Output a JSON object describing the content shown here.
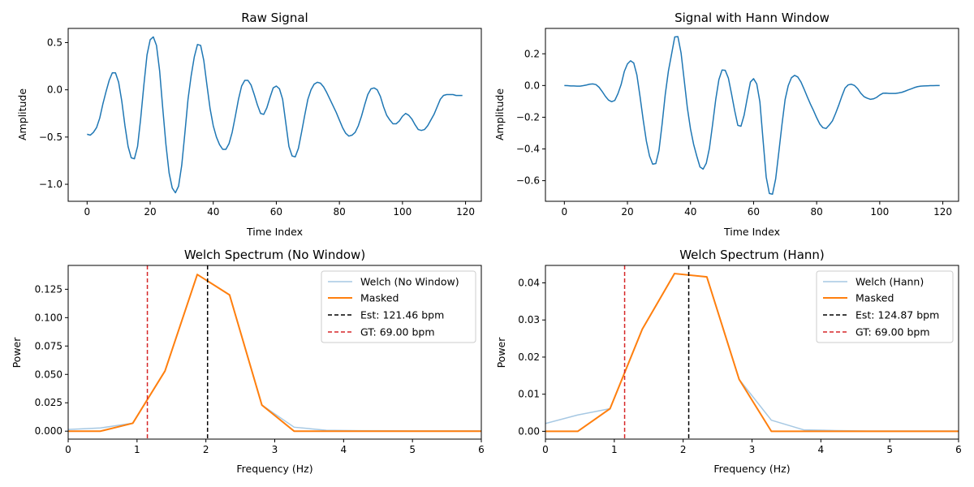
{
  "chart_data": [
    {
      "type": "line",
      "title": "Raw Signal",
      "xlabel": "Time Index",
      "ylabel": "Amplitude",
      "xlim": [
        -6,
        125
      ],
      "ylim": [
        -1.18,
        0.65
      ],
      "xticks": [
        0,
        20,
        40,
        60,
        80,
        100,
        120
      ],
      "yticks": [
        -1.0,
        -0.5,
        0.0,
        0.5
      ],
      "ytick_labels": [
        "−1.0",
        "−0.5",
        "0.0",
        "0.5"
      ],
      "grid": false,
      "series": [
        {
          "color": "#1f77b4",
          "x": [
            0,
            1,
            2,
            3,
            4,
            5,
            6,
            7,
            8,
            9,
            10,
            11,
            12,
            13,
            14,
            15,
            16,
            17,
            18,
            19,
            20,
            21,
            22,
            23,
            24,
            25,
            26,
            27,
            28,
            29,
            30,
            31,
            32,
            33,
            34,
            35,
            36,
            37,
            38,
            39,
            40,
            41,
            42,
            43,
            44,
            45,
            46,
            47,
            48,
            49,
            50,
            51,
            52,
            53,
            54,
            55,
            56,
            57,
            58,
            59,
            60,
            61,
            62,
            63,
            64,
            65,
            66,
            67,
            68,
            69,
            70,
            71,
            72,
            73,
            74,
            75,
            76,
            77,
            78,
            79,
            80,
            81,
            82,
            83,
            84,
            85,
            86,
            87,
            88,
            89,
            90,
            91,
            92,
            93,
            94,
            95,
            96,
            97,
            98,
            99,
            100,
            101,
            102,
            103,
            104,
            105,
            106,
            107,
            108,
            109,
            110,
            111,
            112,
            113,
            114,
            115,
            116,
            117,
            118,
            119
          ],
          "y": [
            -0.47,
            -0.48,
            -0.45,
            -0.4,
            -0.3,
            -0.15,
            -0.02,
            0.1,
            0.18,
            0.18,
            0.08,
            -0.12,
            -0.38,
            -0.6,
            -0.72,
            -0.73,
            -0.6,
            -0.3,
            0.05,
            0.37,
            0.53,
            0.56,
            0.47,
            0.2,
            -0.2,
            -0.58,
            -0.88,
            -1.04,
            -1.09,
            -1.02,
            -0.8,
            -0.46,
            -0.1,
            0.15,
            0.35,
            0.48,
            0.47,
            0.31,
            0.05,
            -0.2,
            -0.38,
            -0.5,
            -0.58,
            -0.63,
            -0.63,
            -0.57,
            -0.45,
            -0.28,
            -0.1,
            0.04,
            0.1,
            0.1,
            0.05,
            -0.05,
            -0.16,
            -0.25,
            -0.26,
            -0.19,
            -0.08,
            0.02,
            0.04,
            0.01,
            -0.1,
            -0.35,
            -0.6,
            -0.7,
            -0.71,
            -0.62,
            -0.45,
            -0.27,
            -0.1,
            0.0,
            0.06,
            0.08,
            0.07,
            0.03,
            -0.03,
            -0.1,
            -0.17,
            -0.24,
            -0.32,
            -0.4,
            -0.46,
            -0.49,
            -0.48,
            -0.45,
            -0.38,
            -0.28,
            -0.16,
            -0.05,
            0.01,
            0.02,
            0.0,
            -0.07,
            -0.18,
            -0.27,
            -0.32,
            -0.36,
            -0.36,
            -0.33,
            -0.28,
            -0.25,
            -0.27,
            -0.31,
            -0.37,
            -0.42,
            -0.43,
            -0.42,
            -0.38,
            -0.32,
            -0.26,
            -0.18,
            -0.1,
            -0.06,
            -0.05,
            -0.05,
            -0.05,
            -0.06,
            -0.06,
            -0.06
          ]
        }
      ]
    },
    {
      "type": "line",
      "title": "Signal with Hann Window",
      "xlabel": "Time Index",
      "ylabel": "Amplitude",
      "xlim": [
        -6,
        125
      ],
      "ylim": [
        -0.73,
        0.36
      ],
      "xticks": [
        0,
        20,
        40,
        60,
        80,
        100,
        120
      ],
      "yticks": [
        -0.6,
        -0.4,
        -0.2,
        0.0,
        0.2
      ],
      "ytick_labels": [
        "−0.6",
        "−0.4",
        "−0.2",
        "0.0",
        "0.2"
      ],
      "grid": false,
      "series": [
        {
          "color": "#1f77b4",
          "x": [
            0,
            1,
            2,
            3,
            4,
            5,
            6,
            7,
            8,
            9,
            10,
            11,
            12,
            13,
            14,
            15,
            16,
            17,
            18,
            19,
            20,
            21,
            22,
            23,
            24,
            25,
            26,
            27,
            28,
            29,
            30,
            31,
            32,
            33,
            34,
            35,
            36,
            37,
            38,
            39,
            40,
            41,
            42,
            43,
            44,
            45,
            46,
            47,
            48,
            49,
            50,
            51,
            52,
            53,
            54,
            55,
            56,
            57,
            58,
            59,
            60,
            61,
            62,
            63,
            64,
            65,
            66,
            67,
            68,
            69,
            70,
            71,
            72,
            73,
            74,
            75,
            76,
            77,
            78,
            79,
            80,
            81,
            82,
            83,
            84,
            85,
            86,
            87,
            88,
            89,
            90,
            91,
            92,
            93,
            94,
            95,
            96,
            97,
            98,
            99,
            100,
            101,
            102,
            103,
            104,
            105,
            106,
            107,
            108,
            109,
            110,
            111,
            112,
            113,
            114,
            115,
            116,
            117,
            118,
            119
          ],
          "y": [
            0.0,
            -0.001,
            -0.003,
            -0.003,
            -0.004,
            -0.004,
            -0.001,
            0.003,
            0.008,
            0.01,
            0.006,
            -0.011,
            -0.038,
            -0.068,
            -0.092,
            -0.102,
            -0.094,
            -0.051,
            0.006,
            0.088,
            0.136,
            0.156,
            0.142,
            0.066,
            -0.07,
            -0.217,
            -0.35,
            -0.444,
            -0.496,
            -0.492,
            -0.409,
            -0.242,
            -0.055,
            0.092,
            0.198,
            0.306,
            0.308,
            0.206,
            0.034,
            -0.141,
            -0.274,
            -0.372,
            -0.446,
            -0.513,
            -0.527,
            -0.49,
            -0.395,
            -0.246,
            -0.088,
            0.037,
            0.098,
            0.096,
            0.047,
            -0.052,
            -0.158,
            -0.251,
            -0.257,
            -0.187,
            -0.079,
            0.022,
            0.043,
            0.01,
            -0.103,
            -0.343,
            -0.577,
            -0.681,
            -0.685,
            -0.589,
            -0.42,
            -0.246,
            -0.088,
            0.0,
            0.049,
            0.064,
            0.054,
            0.023,
            -0.022,
            -0.07,
            -0.116,
            -0.158,
            -0.203,
            -0.243,
            -0.266,
            -0.271,
            -0.249,
            -0.223,
            -0.176,
            -0.124,
            -0.067,
            -0.016,
            0.004,
            0.008,
            0.0,
            -0.02,
            -0.049,
            -0.07,
            -0.08,
            -0.087,
            -0.084,
            -0.075,
            -0.06,
            -0.049,
            -0.048,
            -0.05,
            -0.05,
            -0.05,
            -0.047,
            -0.043,
            -0.036,
            -0.028,
            -0.021,
            -0.013,
            -0.007,
            -0.004,
            -0.003,
            -0.002,
            -0.001,
            -0.001,
            0.0,
            0.0
          ]
        }
      ]
    },
    {
      "type": "line",
      "title": "Welch Spectrum (No Window)",
      "xlabel": "Frequency (Hz)",
      "ylabel": "Power",
      "xlim": [
        0,
        6
      ],
      "ylim": [
        -0.007,
        0.146
      ],
      "xticks": [
        0,
        1,
        2,
        3,
        4,
        5,
        6
      ],
      "yticks": [
        0.0,
        0.025,
        0.05,
        0.075,
        0.1,
        0.125
      ],
      "ytick_labels": [
        "0.000",
        "0.025",
        "0.050",
        "0.075",
        "0.100",
        "0.125"
      ],
      "grid": false,
      "legend": "top-right",
      "series": [
        {
          "name": "Welch (No Window)",
          "color": "#a6c8e3",
          "x": [
            0,
            0.469,
            0.938,
            1.406,
            1.875,
            2.344,
            2.813,
            3.281,
            3.75,
            4.219,
            4.688,
            5.156,
            5.625,
            6.0
          ],
          "y": [
            0.0015,
            0.0028,
            0.007,
            0.053,
            0.138,
            0.12,
            0.023,
            0.0035,
            0.0008,
            0.0004,
            0.0003,
            0.0002,
            0.0002,
            0.0002
          ]
        },
        {
          "name": "Masked",
          "color": "#ff7f0e",
          "x": [
            0,
            0.469,
            0.938,
            1.406,
            1.875,
            2.344,
            2.813,
            3.281,
            3.75,
            4.219,
            4.688,
            5.156,
            5.625,
            6.0
          ],
          "y": [
            0.0,
            0.0,
            0.007,
            0.053,
            0.138,
            0.12,
            0.023,
            0.0,
            0.0,
            0.0,
            0.0,
            0.0,
            0.0,
            0.0
          ]
        }
      ],
      "vlines": [
        {
          "name": "Est: 121.46 bpm",
          "x": 2.024,
          "color": "#000000"
        },
        {
          "name": "GT: 69.00 bpm",
          "x": 1.15,
          "color": "#d62728"
        }
      ]
    },
    {
      "type": "line",
      "title": "Welch Spectrum (Hann)",
      "xlabel": "Frequency (Hz)",
      "ylabel": "Power",
      "xlim": [
        0,
        6
      ],
      "ylim": [
        -0.0021,
        0.0447
      ],
      "xticks": [
        0,
        1,
        2,
        3,
        4,
        5,
        6
      ],
      "yticks": [
        0.0,
        0.01,
        0.02,
        0.03,
        0.04
      ],
      "ytick_labels": [
        "0.00",
        "0.01",
        "0.02",
        "0.03",
        "0.04"
      ],
      "grid": false,
      "legend": "top-right",
      "series": [
        {
          "name": "Welch (Hann)",
          "color": "#a6c8e3",
          "x": [
            0,
            0.469,
            0.938,
            1.406,
            1.875,
            2.344,
            2.813,
            3.281,
            3.75,
            4.219,
            4.688,
            5.156,
            5.625,
            6.0
          ],
          "y": [
            0.0021,
            0.0044,
            0.0061,
            0.0275,
            0.0425,
            0.0416,
            0.014,
            0.003,
            0.0004,
            0.0002,
            0.0001,
            0.0001,
            0.0001,
            0.0001
          ]
        },
        {
          "name": "Masked",
          "color": "#ff7f0e",
          "x": [
            0,
            0.469,
            0.938,
            1.406,
            1.875,
            2.344,
            2.813,
            3.281,
            3.75,
            4.219,
            4.688,
            5.156,
            5.625,
            6.0
          ],
          "y": [
            0.0,
            0.0,
            0.0061,
            0.0275,
            0.0425,
            0.0416,
            0.014,
            0.0,
            0.0,
            0.0,
            0.0,
            0.0,
            0.0,
            0.0
          ]
        }
      ],
      "vlines": [
        {
          "name": "Est: 124.87 bpm",
          "x": 2.081,
          "color": "#000000"
        },
        {
          "name": "GT: 69.00 bpm",
          "x": 1.15,
          "color": "#d62728"
        }
      ]
    }
  ]
}
